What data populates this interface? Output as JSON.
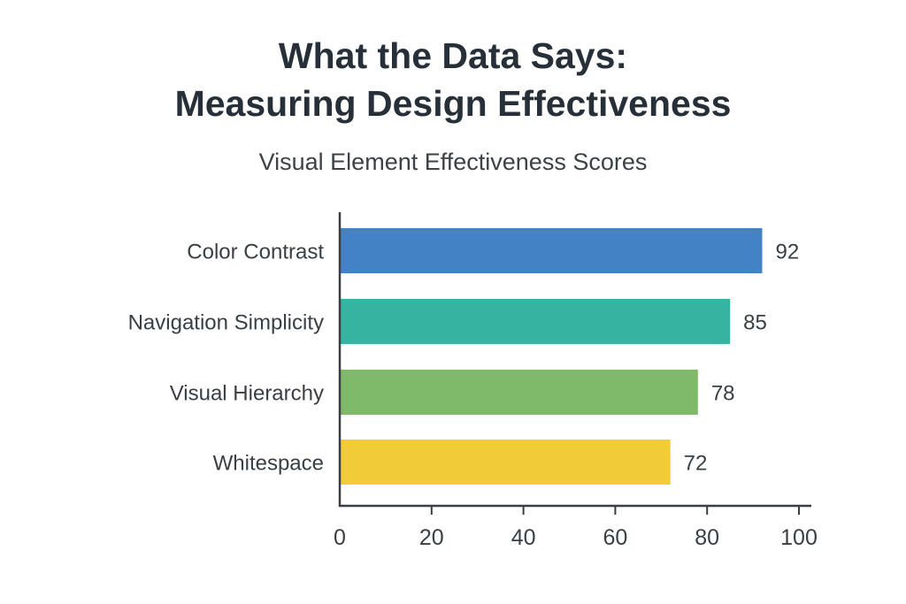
{
  "chart_data": {
    "type": "bar",
    "orientation": "horizontal",
    "title": [
      "What the Data Says:",
      "Measuring Design Effectiveness"
    ],
    "subtitle": "Visual Element Effectiveness Scores",
    "categories": [
      "Color Contrast",
      "Navigation Simplicity",
      "Visual Hierarchy",
      "Whitespace"
    ],
    "values": [
      92,
      85,
      78,
      72
    ],
    "colors": [
      "#4382c4",
      "#37b3a2",
      "#7fba6a",
      "#f2cb38"
    ],
    "xlabel": "",
    "ylabel": "",
    "xlim": [
      0,
      100
    ],
    "xticks": [
      "0",
      "20",
      "40",
      "60",
      "80",
      "100"
    ],
    "grid": false,
    "data_labels": true
  }
}
